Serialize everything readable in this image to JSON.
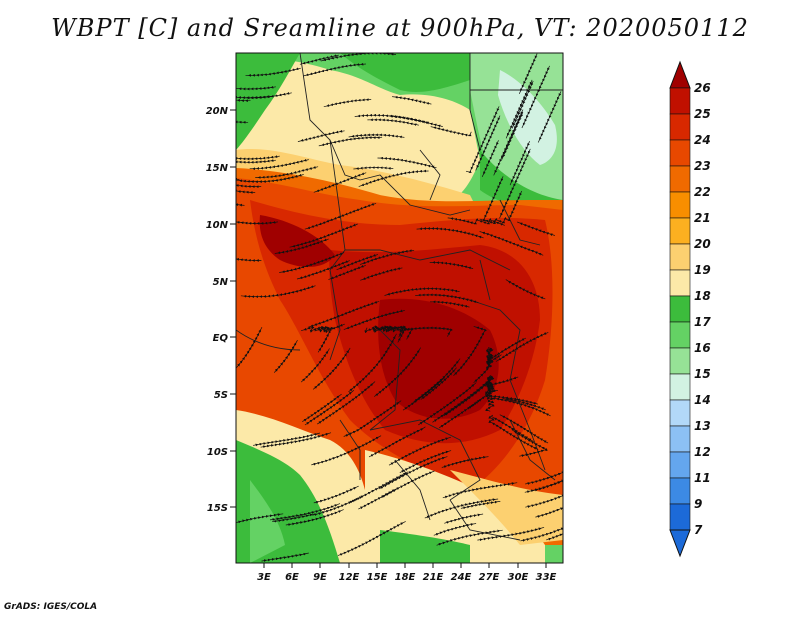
{
  "title": "WBPT [C] and Sreamline at 900hPa, VT: 2020050112",
  "footer": "GrADS: IGES/COLA",
  "map": {
    "variable": "Wet-bulb potential temperature",
    "units": "C",
    "level": "900hPa",
    "valid_time": "2020050112",
    "lat_labels": [
      "20N",
      "15N",
      "10N",
      "5N",
      "EQ",
      "5S",
      "10S",
      "15S"
    ],
    "lon_labels": [
      "3E",
      "6E",
      "9E",
      "12E",
      "15E",
      "18E",
      "21E",
      "24E",
      "27E",
      "30E",
      "33E"
    ]
  },
  "colorbar": {
    "levels": [
      "26",
      "25",
      "24",
      "23",
      "22",
      "21",
      "20",
      "19",
      "18",
      "17",
      "16",
      "15",
      "14",
      "13",
      "12",
      "11",
      "9",
      "7"
    ],
    "colors": [
      "#a00000",
      "#c01000",
      "#d82800",
      "#e84800",
      "#f06a00",
      "#f88e00",
      "#fcb020",
      "#fcd070",
      "#fce9a8",
      "#3cbc3c",
      "#64d264",
      "#96e296",
      "#d2f2e2",
      "#b2d8f8",
      "#8cc0f4",
      "#64a6ee",
      "#3c8ae4",
      "#1c6ad8"
    ],
    "top_arrow_color": "#a00000",
    "bottom_arrow_color": "#1c6ad8"
  },
  "colors": {
    "land_green": "#3cbc3c",
    "light_green": "#64d264",
    "pale_green": "#96e296",
    "pale_yellow": "#fce9a8",
    "yellow": "#fcd070",
    "orange": "#f06a00",
    "red_orange": "#e84800",
    "red": "#d82800",
    "dark_red": "#c01000",
    "maroon": "#a00000",
    "pale_blue": "#d2f2e2"
  }
}
